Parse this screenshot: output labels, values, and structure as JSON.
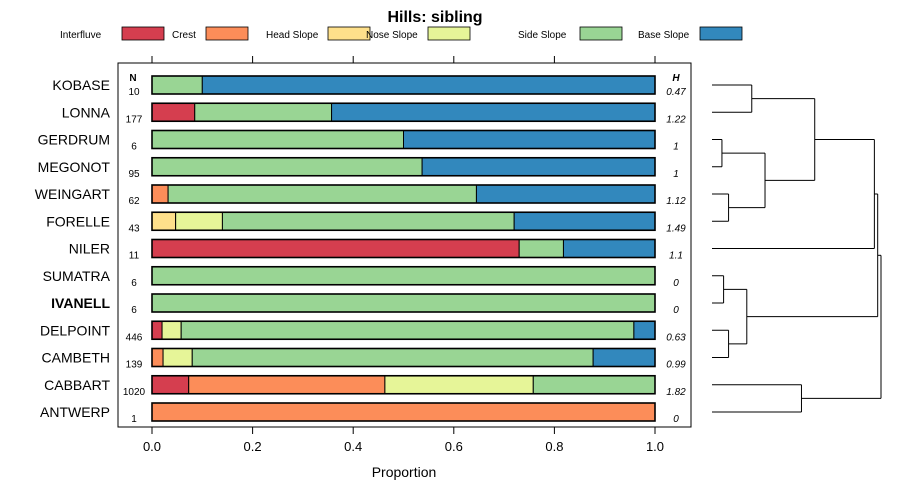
{
  "chart_data": {
    "type": "bar",
    "orientation": "horizontal",
    "stacked": true,
    "title": "Hills: sibling",
    "xlabel": "Proportion",
    "ylabel": "",
    "xlim": [
      0,
      1
    ],
    "x_ticks": [
      "0.0",
      "0.2",
      "0.4",
      "0.6",
      "0.8",
      "1.0"
    ],
    "n_header": "N",
    "h_header": "H",
    "highlight_category": "IVANELL",
    "legend": [
      {
        "name": "Interfluve",
        "color": "#d53e4f"
      },
      {
        "name": "Crest",
        "color": "#fc8d59"
      },
      {
        "name": "Head Slope",
        "color": "#fee08b"
      },
      {
        "name": "Nose Slope",
        "color": "#e6f598"
      },
      {
        "name": "Side Slope",
        "color": "#99d594"
      },
      {
        "name": "Base Slope",
        "color": "#3288bd"
      }
    ],
    "categories": [
      "KOBASE",
      "LONNA",
      "GERDRUM",
      "MEGONOT",
      "WEINGART",
      "FORELLE",
      "NILER",
      "SUMATRA",
      "IVANELL",
      "DELPOINT",
      "CAMBETH",
      "CABBART",
      "ANTWERP"
    ],
    "n": [
      "10",
      "177",
      "6",
      "95",
      "62",
      "43",
      "11",
      "6",
      "6",
      "446",
      "139",
      "1020",
      "1"
    ],
    "h": [
      "0.47",
      "1.22",
      "1",
      "1",
      "1.12",
      "1.49",
      "1.1",
      "0",
      "0",
      "0.63",
      "0.99",
      "1.82",
      "0"
    ],
    "series": [
      {
        "name": "Interfluve",
        "values": [
          0,
          0.085,
          0,
          0,
          0,
          0,
          0.73,
          0,
          0,
          0.02,
          0,
          0.073,
          0
        ]
      },
      {
        "name": "Crest",
        "values": [
          0,
          0,
          0,
          0,
          0.032,
          0,
          0,
          0,
          0,
          0,
          0.022,
          0.39,
          1.0
        ]
      },
      {
        "name": "Head Slope",
        "values": [
          0,
          0,
          0,
          0,
          0,
          0.047,
          0,
          0,
          0,
          0,
          0,
          0,
          0
        ]
      },
      {
        "name": "Nose Slope",
        "values": [
          0,
          0,
          0,
          0,
          0,
          0.093,
          0,
          0,
          0,
          0.038,
          0.058,
          0.295,
          0
        ]
      },
      {
        "name": "Side Slope",
        "values": [
          0.1,
          0.272,
          0.5,
          0.537,
          0.613,
          0.58,
          0.088,
          1.0,
          1.0,
          0.9,
          0.797,
          0.242,
          0
        ]
      },
      {
        "name": "Base Slope",
        "values": [
          0.9,
          0.643,
          0.5,
          0.463,
          0.355,
          0.28,
          0.182,
          0,
          0,
          0.042,
          0.123,
          0,
          0
        ]
      }
    ],
    "dendrogram": {
      "merges": [
        [
          0,
          1
        ],
        [
          2,
          3
        ],
        [
          4,
          5
        ],
        [
          14,
          15
        ],
        [
          13,
          16
        ],
        [
          7,
          8
        ],
        [
          9,
          10
        ],
        [
          18,
          19
        ],
        [
          17,
          6
        ],
        [
          21,
          20
        ],
        [
          11,
          12
        ],
        [
          22,
          23
        ]
      ],
      "heights": [
        0.24,
        0.06,
        0.1,
        0.32,
        0.62,
        0.07,
        0.1,
        0.21,
        0.98,
        1.0,
        0.54,
        1.02
      ]
    }
  }
}
